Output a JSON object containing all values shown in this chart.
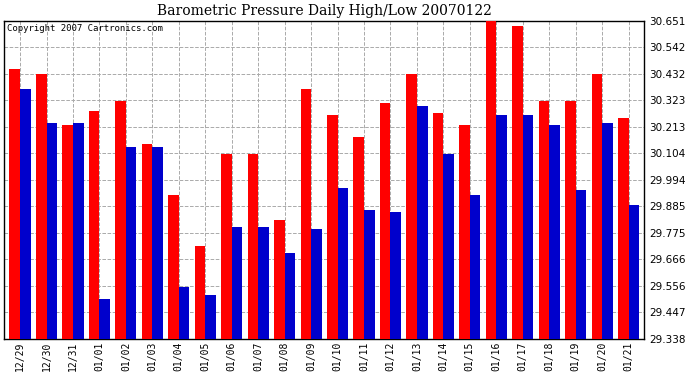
{
  "title": "Barometric Pressure Daily High/Low 20070122",
  "copyright": "Copyright 2007 Cartronics.com",
  "labels": [
    "12/29",
    "12/30",
    "12/31",
    "01/01",
    "01/02",
    "01/03",
    "01/04",
    "01/05",
    "01/06",
    "01/07",
    "01/08",
    "01/09",
    "01/10",
    "01/11",
    "01/12",
    "01/13",
    "01/14",
    "01/15",
    "01/16",
    "01/17",
    "01/18",
    "01/19",
    "01/20",
    "01/21"
  ],
  "high": [
    30.45,
    30.43,
    30.22,
    30.28,
    30.32,
    30.14,
    29.93,
    29.72,
    30.1,
    30.1,
    29.83,
    30.37,
    30.26,
    30.17,
    30.31,
    30.43,
    30.27,
    30.22,
    30.65,
    30.63,
    30.32,
    30.32,
    30.43,
    30.25
  ],
  "low": [
    30.37,
    30.23,
    30.23,
    29.5,
    30.13,
    30.13,
    29.55,
    29.52,
    29.8,
    29.8,
    29.69,
    29.79,
    29.96,
    29.87,
    29.86,
    30.3,
    30.1,
    29.93,
    30.26,
    30.26,
    30.22,
    29.95,
    30.23,
    29.89
  ],
  "bar_color_high": "#ff0000",
  "bar_color_low": "#0000cc",
  "bg_color": "#ffffff",
  "plot_bg_color": "#ffffff",
  "grid_color": "#aaaaaa",
  "ylim_min": 29.338,
  "ylim_max": 30.651,
  "yticks": [
    29.338,
    29.447,
    29.556,
    29.666,
    29.775,
    29.885,
    29.994,
    30.104,
    30.213,
    30.323,
    30.432,
    30.542,
    30.651
  ]
}
